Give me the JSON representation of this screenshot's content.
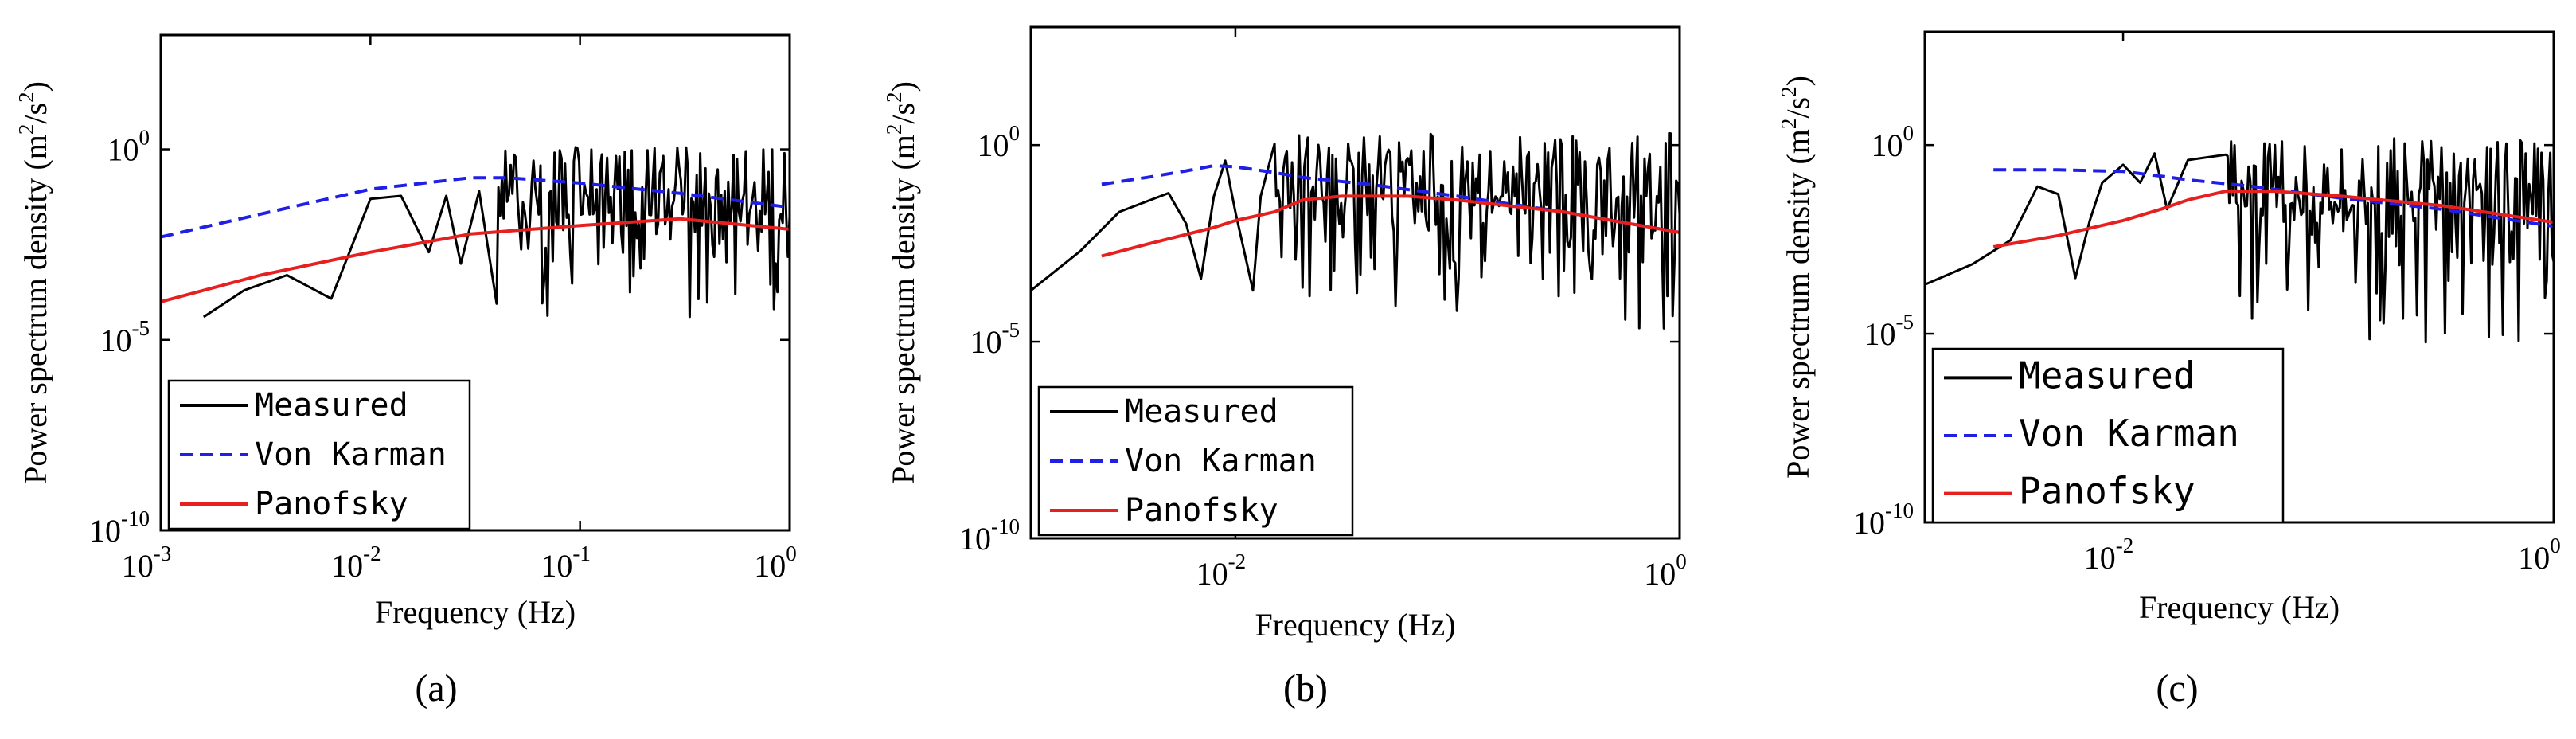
{
  "figure": {
    "panels": [
      "(a)",
      "(b)",
      "(c)"
    ]
  },
  "colors": {
    "measured": "#000000",
    "von_karman": "#1f1fe6",
    "panofsky": "#e61f1f",
    "frame": "#000000"
  },
  "chart_data": [
    {
      "type": "line",
      "panel_label": "(a)",
      "xlabel": "Frequency (Hz)",
      "ylabel": "Power spectrum density (m2/s2)",
      "ylabel_main": "Power spectrum density (m",
      "ylabel_sup1": "2",
      "ylabel_mid": "/s",
      "ylabel_sup2": "2",
      "ylabel_end": ")",
      "xscale": "log",
      "yscale": "log",
      "xlim": [
        0.001,
        1
      ],
      "ylim": [
        1e-10,
        1000.0
      ],
      "xticks": [
        {
          "base": "10",
          "exp": "-3",
          "value": 0.001
        },
        {
          "base": "10",
          "exp": "-2",
          "value": 0.01
        },
        {
          "base": "10",
          "exp": "-1",
          "value": 0.1
        },
        {
          "base": "10",
          "exp": "0",
          "value": 1
        }
      ],
      "yticks": [
        {
          "base": "10",
          "exp": "-10",
          "value": 1e-10
        },
        {
          "base": "10",
          "exp": "-5",
          "value": 1e-05
        },
        {
          "base": "10",
          "exp": "0",
          "value": 1
        }
      ],
      "legend": [
        {
          "label": "Measured",
          "series": "measured"
        },
        {
          "label": "Von Karman",
          "series": "von_karman"
        },
        {
          "label": "Panofsky",
          "series": "panofsky"
        }
      ],
      "legend_position": "bottom-left",
      "series": [
        {
          "name": "Measured",
          "key": "measured",
          "style": "solid",
          "x": [
            0.0016,
            0.0025,
            0.004,
            0.0065,
            0.01,
            0.014,
            0.019,
            0.023,
            0.027,
            0.033,
            0.04,
            0.05,
            0.065,
            0.08,
            0.1,
            0.15,
            0.2,
            0.3,
            0.5,
            0.7,
            1.0
          ],
          "y": [
            4e-05,
            0.0002,
            0.0005,
            0.00012,
            0.05,
            0.06,
            0.002,
            0.06,
            0.001,
            0.08,
            2e-05,
            0.05,
            0.0003,
            0.15,
            0.4,
            0.001,
            0.7,
            0.9,
            0.005,
            1.2,
            0.3
          ],
          "noise": {
            "from": 0.04,
            "to": 1.0,
            "center": 0.02,
            "hi": 1.2,
            "lo": 3e-05
          }
        },
        {
          "name": "Von Karman",
          "key": "von_karman",
          "style": "dashed",
          "x": [
            0.001,
            0.003,
            0.01,
            0.03,
            0.045,
            0.1,
            0.3,
            1.0
          ],
          "y": [
            0.005,
            0.02,
            0.09,
            0.18,
            0.18,
            0.13,
            0.07,
            0.03
          ]
        },
        {
          "name": "Panofsky",
          "key": "panofsky",
          "style": "solid",
          "x": [
            0.001,
            0.003,
            0.01,
            0.03,
            0.1,
            0.3,
            1.0
          ],
          "y": [
            0.0001,
            0.0005,
            0.002,
            0.006,
            0.01,
            0.015,
            0.008
          ]
        }
      ]
    },
    {
      "type": "line",
      "panel_label": "(b)",
      "xlabel": "Frequency (Hz)",
      "ylabel": "Power spectrum density (m2/s2)",
      "ylabel_main": "Power spectrum density (m",
      "ylabel_sup1": "2",
      "ylabel_mid": "/s",
      "ylabel_sup2": "2",
      "ylabel_end": ")",
      "xscale": "log",
      "yscale": "log",
      "xlim": [
        0.0012,
        1
      ],
      "ylim": [
        1e-10,
        1000.0
      ],
      "xticks": [
        {
          "base": "10",
          "exp": "-2",
          "value": 0.01
        },
        {
          "base": "10",
          "exp": "0",
          "value": 1
        }
      ],
      "yticks": [
        {
          "base": "10",
          "exp": "-10",
          "value": 1e-10
        },
        {
          "base": "10",
          "exp": "-5",
          "value": 1e-05
        },
        {
          "base": "10",
          "exp": "0",
          "value": 1
        }
      ],
      "legend": [
        {
          "label": "Measured",
          "series": "measured"
        },
        {
          "label": "Von Karman",
          "series": "von_karman"
        },
        {
          "label": "Panofsky",
          "series": "panofsky"
        }
      ],
      "legend_position": "bottom-left",
      "series": [
        {
          "name": "Measured",
          "key": "measured",
          "style": "solid",
          "x": [
            0.0012,
            0.002,
            0.003,
            0.005,
            0.006,
            0.007,
            0.008,
            0.009,
            0.01,
            0.012,
            0.013,
            0.015,
            0.018,
            0.02,
            0.025,
            0.03,
            0.04,
            0.06,
            0.1,
            0.2,
            0.5,
            1.0
          ],
          "y": [
            0.0002,
            0.002,
            0.02,
            0.06,
            0.01,
            0.0004,
            0.05,
            0.4,
            0.02,
            0.0002,
            0.05,
            0.5,
            0.005,
            0.3,
            0.001,
            0.8,
            0.05,
            0.9,
            0.2,
            0.7,
            0.1,
            0.02
          ],
          "noise": {
            "from": 0.015,
            "to": 1.0,
            "center": 0.05,
            "hi": 2.0,
            "lo": 1e-05
          }
        },
        {
          "name": "Von Karman",
          "key": "von_karman",
          "style": "dashed",
          "x": [
            0.0025,
            0.004,
            0.006,
            0.008,
            0.01,
            0.015,
            0.02,
            0.04,
            0.1,
            0.3,
            1.0
          ],
          "y": [
            0.1,
            0.15,
            0.22,
            0.3,
            0.28,
            0.2,
            0.15,
            0.1,
            0.05,
            0.02,
            0.006
          ]
        },
        {
          "name": "Panofsky",
          "key": "panofsky",
          "style": "solid",
          "x": [
            0.0025,
            0.004,
            0.008,
            0.01,
            0.015,
            0.02,
            0.03,
            0.06,
            0.1,
            0.3,
            1.0
          ],
          "y": [
            0.0015,
            0.003,
            0.008,
            0.012,
            0.02,
            0.04,
            0.05,
            0.05,
            0.04,
            0.02,
            0.006
          ]
        }
      ]
    },
    {
      "type": "line",
      "panel_label": "(c)",
      "xlabel": "Frequency (Hz)",
      "ylabel": "Power spectrum density (m2/s2)",
      "ylabel_main": "Power spectrum density (m",
      "ylabel_sup1": "2",
      "ylabel_mid": "/s",
      "ylabel_sup2": "2",
      "ylabel_end": ")",
      "xscale": "log",
      "yscale": "log",
      "xlim": [
        0.0012,
        1
      ],
      "ylim": [
        1e-10,
        1000.0
      ],
      "xticks": [
        {
          "base": "10",
          "exp": "-2",
          "value": 0.01
        },
        {
          "base": "10",
          "exp": "0",
          "value": 1
        }
      ],
      "yticks": [
        {
          "base": "10",
          "exp": "-10",
          "value": 1e-10
        },
        {
          "base": "10",
          "exp": "-5",
          "value": 1e-05
        },
        {
          "base": "10",
          "exp": "0",
          "value": 1
        }
      ],
      "legend": [
        {
          "label": "Measured",
          "series": "measured"
        },
        {
          "label": "Von Karman",
          "series": "von_karman"
        },
        {
          "label": "Panofsky",
          "series": "panofsky"
        }
      ],
      "legend_position": "bottom-left",
      "series": [
        {
          "name": "Measured",
          "key": "measured",
          "style": "solid",
          "x": [
            0.0012,
            0.002,
            0.003,
            0.004,
            0.005,
            0.006,
            0.007,
            0.008,
            0.01,
            0.012,
            0.014,
            0.016,
            0.02,
            0.03,
            0.05,
            0.08,
            0.1,
            0.2,
            0.4,
            0.7,
            1.0
          ],
          "y": [
            0.0002,
            0.0007,
            0.003,
            0.08,
            0.05,
            0.0003,
            0.01,
            0.1,
            0.3,
            0.1,
            0.6,
            0.02,
            0.4,
            0.05,
            0.8,
            0.1,
            0.5,
            0.05,
            0.3,
            0.02,
            0.01
          ],
          "noise": {
            "from": 0.03,
            "to": 1.0,
            "center": 0.03,
            "hi": 1.5,
            "lo": 5e-06
          }
        },
        {
          "name": "Von Karman",
          "key": "von_karman",
          "style": "dashed",
          "x": [
            0.0025,
            0.005,
            0.01,
            0.015,
            0.02,
            0.04,
            0.1,
            0.3,
            1.0
          ],
          "y": [
            0.22,
            0.22,
            0.2,
            0.15,
            0.12,
            0.08,
            0.04,
            0.02,
            0.007
          ]
        },
        {
          "name": "Panofsky",
          "key": "panofsky",
          "style": "solid",
          "x": [
            0.0025,
            0.005,
            0.01,
            0.015,
            0.02,
            0.03,
            0.05,
            0.1,
            0.3,
            1.0
          ],
          "y": [
            0.002,
            0.004,
            0.01,
            0.02,
            0.035,
            0.06,
            0.06,
            0.045,
            0.025,
            0.009
          ]
        }
      ]
    }
  ]
}
